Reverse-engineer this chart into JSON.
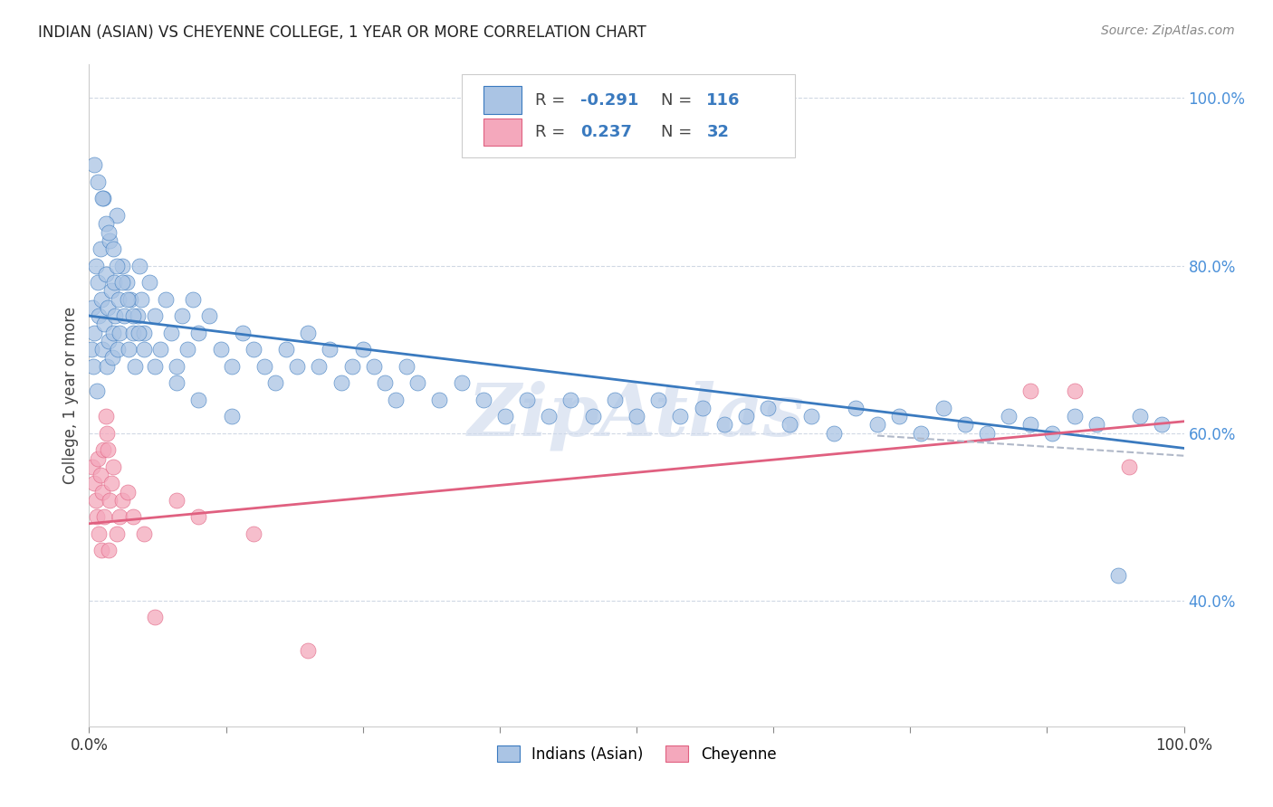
{
  "title": "INDIAN (ASIAN) VS CHEYENNE COLLEGE, 1 YEAR OR MORE CORRELATION CHART",
  "source": "Source: ZipAtlas.com",
  "ylabel": "College, 1 year or more",
  "xlim": [
    0.0,
    1.0
  ],
  "ylim": [
    0.25,
    1.04
  ],
  "x_ticks": [
    0.0,
    0.125,
    0.25,
    0.375,
    0.5,
    0.625,
    0.75,
    0.875,
    1.0
  ],
  "y_ticks": [
    0.4,
    0.6,
    0.8,
    1.0
  ],
  "y_ticklabels": [
    "40.0%",
    "60.0%",
    "80.0%",
    "100.0%"
  ],
  "color_blue": "#aac4e4",
  "color_pink": "#f4a8bc",
  "line_color_blue": "#3a7abf",
  "line_color_pink": "#e06080",
  "line_color_dashed": "#b0b8c8",
  "watermark": "ZipAtlas",
  "watermark_color": "#ccd8ec",
  "blue_line_x0": 0.0,
  "blue_line_x1": 1.0,
  "blue_line_y0": 0.74,
  "blue_line_y1": 0.582,
  "pink_line_x0": 0.0,
  "pink_line_x1": 1.0,
  "pink_line_y0": 0.492,
  "pink_line_y1": 0.614,
  "dashed_line_x0": 0.72,
  "dashed_line_x1": 1.0,
  "dashed_line_y0": 0.597,
  "dashed_line_y1": 0.573,
  "blue_scatter_x": [
    0.002,
    0.003,
    0.004,
    0.005,
    0.006,
    0.007,
    0.008,
    0.009,
    0.01,
    0.011,
    0.012,
    0.013,
    0.014,
    0.015,
    0.016,
    0.017,
    0.018,
    0.019,
    0.02,
    0.021,
    0.022,
    0.023,
    0.024,
    0.025,
    0.026,
    0.027,
    0.028,
    0.03,
    0.032,
    0.034,
    0.036,
    0.038,
    0.04,
    0.042,
    0.044,
    0.046,
    0.048,
    0.05,
    0.055,
    0.06,
    0.065,
    0.07,
    0.075,
    0.08,
    0.085,
    0.09,
    0.095,
    0.1,
    0.11,
    0.12,
    0.13,
    0.14,
    0.15,
    0.16,
    0.17,
    0.18,
    0.19,
    0.2,
    0.21,
    0.22,
    0.23,
    0.24,
    0.25,
    0.26,
    0.27,
    0.28,
    0.29,
    0.3,
    0.32,
    0.34,
    0.36,
    0.38,
    0.4,
    0.42,
    0.44,
    0.46,
    0.48,
    0.5,
    0.52,
    0.54,
    0.56,
    0.58,
    0.6,
    0.62,
    0.64,
    0.66,
    0.68,
    0.7,
    0.72,
    0.74,
    0.76,
    0.78,
    0.8,
    0.82,
    0.84,
    0.86,
    0.88,
    0.9,
    0.92,
    0.94,
    0.96,
    0.98,
    0.005,
    0.008,
    0.012,
    0.015,
    0.018,
    0.022,
    0.025,
    0.03,
    0.035,
    0.04,
    0.045,
    0.05,
    0.06,
    0.08,
    0.1,
    0.13
  ],
  "blue_scatter_y": [
    0.7,
    0.75,
    0.68,
    0.72,
    0.8,
    0.65,
    0.78,
    0.74,
    0.82,
    0.76,
    0.7,
    0.88,
    0.73,
    0.79,
    0.68,
    0.75,
    0.71,
    0.83,
    0.77,
    0.69,
    0.72,
    0.78,
    0.74,
    0.86,
    0.7,
    0.76,
    0.72,
    0.8,
    0.74,
    0.78,
    0.7,
    0.76,
    0.72,
    0.68,
    0.74,
    0.8,
    0.76,
    0.72,
    0.78,
    0.74,
    0.7,
    0.76,
    0.72,
    0.68,
    0.74,
    0.7,
    0.76,
    0.72,
    0.74,
    0.7,
    0.68,
    0.72,
    0.7,
    0.68,
    0.66,
    0.7,
    0.68,
    0.72,
    0.68,
    0.7,
    0.66,
    0.68,
    0.7,
    0.68,
    0.66,
    0.64,
    0.68,
    0.66,
    0.64,
    0.66,
    0.64,
    0.62,
    0.64,
    0.62,
    0.64,
    0.62,
    0.64,
    0.62,
    0.64,
    0.62,
    0.63,
    0.61,
    0.62,
    0.63,
    0.61,
    0.62,
    0.6,
    0.63,
    0.61,
    0.62,
    0.6,
    0.63,
    0.61,
    0.6,
    0.62,
    0.61,
    0.6,
    0.62,
    0.61,
    0.43,
    0.62,
    0.61,
    0.92,
    0.9,
    0.88,
    0.85,
    0.84,
    0.82,
    0.8,
    0.78,
    0.76,
    0.74,
    0.72,
    0.7,
    0.68,
    0.66,
    0.64,
    0.62
  ],
  "pink_scatter_x": [
    0.003,
    0.005,
    0.006,
    0.007,
    0.008,
    0.009,
    0.01,
    0.011,
    0.012,
    0.013,
    0.014,
    0.015,
    0.016,
    0.017,
    0.018,
    0.019,
    0.02,
    0.022,
    0.025,
    0.028,
    0.03,
    0.035,
    0.04,
    0.05,
    0.06,
    0.08,
    0.1,
    0.15,
    0.2,
    0.86,
    0.9,
    0.95
  ],
  "pink_scatter_y": [
    0.56,
    0.54,
    0.52,
    0.5,
    0.57,
    0.48,
    0.55,
    0.46,
    0.53,
    0.58,
    0.5,
    0.62,
    0.6,
    0.58,
    0.46,
    0.52,
    0.54,
    0.56,
    0.48,
    0.5,
    0.52,
    0.53,
    0.5,
    0.48,
    0.38,
    0.52,
    0.5,
    0.48,
    0.34,
    0.65,
    0.65,
    0.56
  ]
}
